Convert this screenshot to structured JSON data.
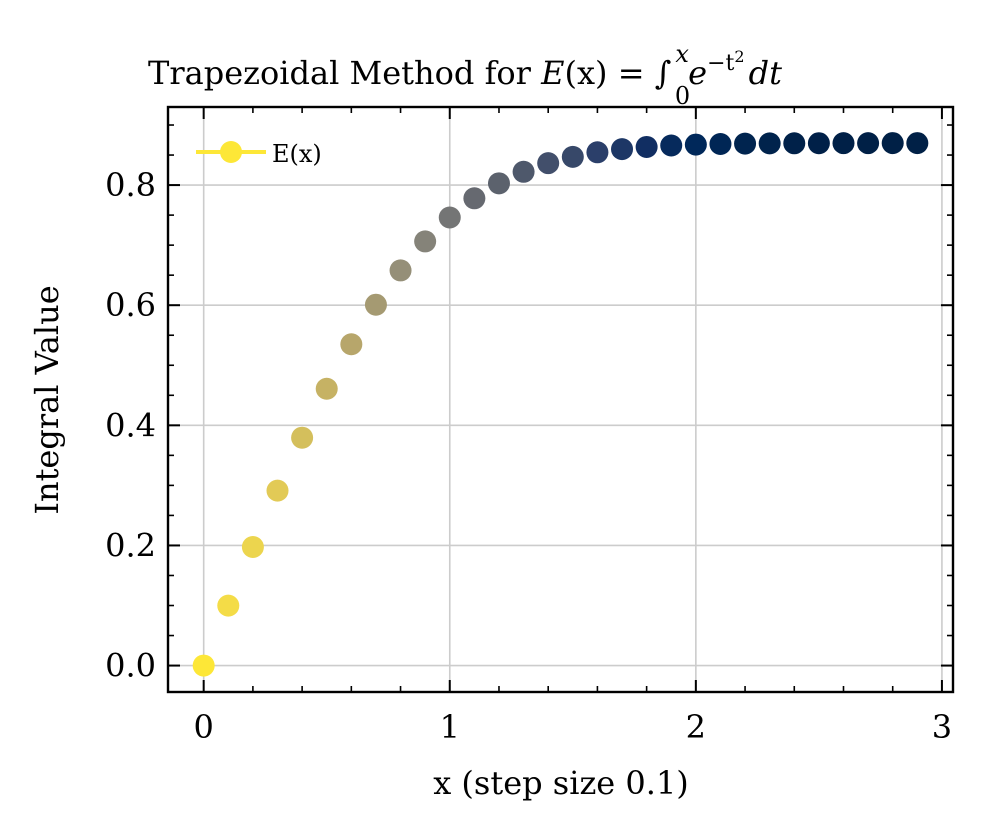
{
  "chart_data": {
    "type": "scatter",
    "title": "Trapezoidal Method for E(x) = ∫₀ˣ e^(−t²) dt",
    "title_parts": {
      "prefix": "Trapezoidal Method for ",
      "func": "E",
      "arg": "(x)",
      "equals": " = ",
      "integral": "∫",
      "upper": "x",
      "lower": "0",
      "base": "e",
      "exponent": "−t",
      "exp_power": "2",
      "differential": "dt"
    },
    "xlabel": "x (step size 0.1)",
    "ylabel": "Integral Value",
    "xlim": [
      -0.145,
      3.045
    ],
    "ylim": [
      -0.044,
      0.93
    ],
    "xticks": [
      0,
      1,
      2,
      3
    ],
    "xtick_labels": [
      "0",
      "1",
      "2",
      "3"
    ],
    "yticks": [
      0.0,
      0.2,
      0.4,
      0.6,
      0.8
    ],
    "ytick_labels": [
      "0.0",
      "0.2",
      "0.4",
      "0.6",
      "0.8"
    ],
    "grid": true,
    "legend": {
      "position": "top-left",
      "entries": [
        {
          "label": "E(x)",
          "color": "#fde737"
        }
      ]
    },
    "colormap": "cividis-reversed",
    "series": [
      {
        "name": "E(x)",
        "x": [
          0.0,
          0.1,
          0.2,
          0.3,
          0.4,
          0.5,
          0.6,
          0.7,
          0.8,
          0.9,
          1.0,
          1.1,
          1.2,
          1.3,
          1.4,
          1.5,
          1.6,
          1.7,
          1.8,
          1.9,
          2.0,
          2.1,
          2.2,
          2.3,
          2.4,
          2.5,
          2.6,
          2.7,
          2.8,
          2.9
        ],
        "y": [
          0.0,
          0.0998,
          0.1974,
          0.2913,
          0.3794,
          0.4609,
          0.535,
          0.6008,
          0.6579,
          0.7062,
          0.746,
          0.778,
          0.8029,
          0.8221,
          0.8365,
          0.847,
          0.8546,
          0.8599,
          0.8635,
          0.8659,
          0.8674,
          0.8684,
          0.869,
          0.8694,
          0.8696,
          0.8697,
          0.8698,
          0.8698,
          0.8699,
          0.8699
        ],
        "colors": [
          "#fde737",
          "#f4dc47",
          "#ecd54e",
          "#e2ca56",
          "#d4bf5c",
          "#c6b264",
          "#b7a66b",
          "#a59a72",
          "#958f78",
          "#858379",
          "#747575",
          "#666970",
          "#5c626d",
          "#4e586b",
          "#424f6b",
          "#374869",
          "#2b3f6a",
          "#1d3766",
          "#112e62",
          "#062a5c",
          "#00285a",
          "#002655",
          "#00244f",
          "#00234c",
          "#002149",
          "#002048",
          "#002047",
          "#002046",
          "#002046",
          "#002046"
        ]
      }
    ]
  }
}
